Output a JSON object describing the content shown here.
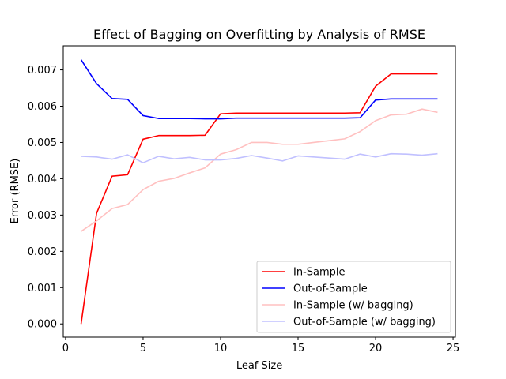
{
  "chart_data": {
    "type": "line",
    "title": "Effect of Bagging on Overfitting by Analysis of RMSE",
    "xlabel": "Leaf Size",
    "ylabel": "Error (RMSE)",
    "xlim": [
      -0.15,
      25.15
    ],
    "ylim": [
      -0.000365,
      0.007665
    ],
    "xticks": [
      0,
      5,
      10,
      15,
      20,
      25
    ],
    "yticks": [
      0.0,
      0.001,
      0.002,
      0.003,
      0.004,
      0.005,
      0.006,
      0.007
    ],
    "xtick_labels": [
      "0",
      "5",
      "10",
      "15",
      "20",
      "25"
    ],
    "ytick_labels": [
      "0.000",
      "0.001",
      "0.002",
      "0.003",
      "0.004",
      "0.005",
      "0.006",
      "0.007"
    ],
    "grid": false,
    "legend_position": "lower-right",
    "x": [
      1,
      2,
      3,
      4,
      5,
      6,
      7,
      8,
      9,
      10,
      11,
      12,
      13,
      14,
      15,
      16,
      17,
      18,
      19,
      20,
      21,
      22,
      23,
      24
    ],
    "series": [
      {
        "name": "In-Sample",
        "color": "#ff0000",
        "values": [
          0.0,
          0.00305,
          0.00407,
          0.00411,
          0.00509,
          0.00519,
          0.00519,
          0.00519,
          0.0052,
          0.00579,
          0.00581,
          0.00581,
          0.00581,
          0.00581,
          0.00581,
          0.00581,
          0.00581,
          0.00581,
          0.00582,
          0.00655,
          0.00689,
          0.00689,
          0.00689,
          0.00689
        ]
      },
      {
        "name": "Out-of-Sample",
        "color": "#0000ff",
        "values": [
          0.00728,
          0.00662,
          0.00621,
          0.00619,
          0.00574,
          0.00566,
          0.00566,
          0.00566,
          0.00565,
          0.00565,
          0.00567,
          0.00567,
          0.00567,
          0.00567,
          0.00567,
          0.00567,
          0.00567,
          0.00567,
          0.00568,
          0.00617,
          0.0062,
          0.0062,
          0.0062,
          0.0062
        ]
      },
      {
        "name": "In-Sample (w/ bagging)",
        "color": "#ffc0c0",
        "values": [
          0.00255,
          0.00284,
          0.00318,
          0.00329,
          0.0037,
          0.00393,
          0.00401,
          0.00416,
          0.0043,
          0.00468,
          0.0048,
          0.005,
          0.005,
          0.00495,
          0.00495,
          0.005,
          0.00505,
          0.0051,
          0.0053,
          0.0056,
          0.00576,
          0.00578,
          0.00592,
          0.00583
        ]
      },
      {
        "name": "Out-of-Sample (w/ bagging)",
        "color": "#c0c0ff",
        "values": [
          0.00462,
          0.0046,
          0.00454,
          0.00466,
          0.00444,
          0.00462,
          0.00455,
          0.00459,
          0.00452,
          0.00452,
          0.00456,
          0.00464,
          0.00457,
          0.00449,
          0.00463,
          0.0046,
          0.00457,
          0.00454,
          0.00468,
          0.0046,
          0.00469,
          0.00468,
          0.00465,
          0.00469
        ]
      }
    ]
  }
}
